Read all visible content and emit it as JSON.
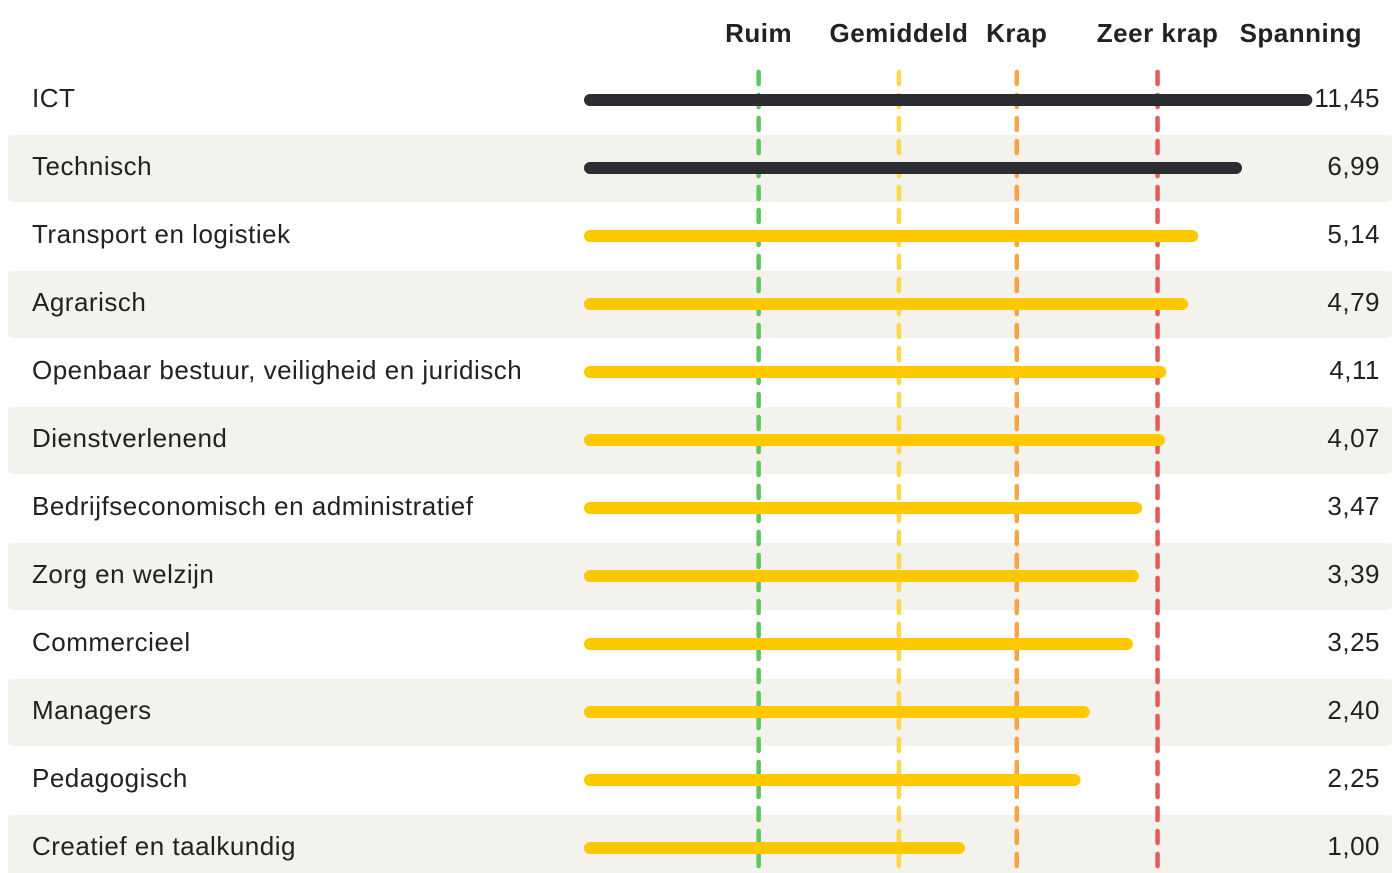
{
  "chart_data": {
    "type": "bar",
    "orientation": "horizontal",
    "log_scale": true,
    "xlim": [
      0.075,
      12
    ],
    "value_header": "Spanning",
    "categories": [
      "ICT",
      "Technisch",
      "Transport en logistiek",
      "Agrarisch",
      "Openbaar bestuur, veiligheid en juridisch",
      "Dienstverlenend",
      "Bedrijfseconomisch en administratief",
      "Zorg en welzijn",
      "Commercieel",
      "Managers",
      "Pedagogisch",
      "Creatief en taalkundig"
    ],
    "values": [
      11.45,
      6.99,
      5.14,
      4.79,
      4.11,
      4.07,
      3.47,
      3.39,
      3.25,
      2.4,
      2.25,
      1.0
    ],
    "value_labels": [
      "11,45",
      "6,99",
      "5,14",
      "4,79",
      "4,11",
      "4,07",
      "3,47",
      "3,39",
      "3,25",
      "2,40",
      "2,25",
      "1,00"
    ],
    "colors": [
      "#2b2d33",
      "#2b2d33",
      "#ffc800",
      "#ffc800",
      "#ffc800",
      "#ffc800",
      "#ffc800",
      "#ffc800",
      "#ffc800",
      "#ffc800",
      "#ffc800",
      "#ffc800"
    ],
    "reference_lines": [
      {
        "label": "Ruim",
        "value": 0.245,
        "color": "#5ec65e"
      },
      {
        "label": "Gemiddeld",
        "value": 0.656,
        "color": "#ffd84a"
      },
      {
        "label": "Krap",
        "value": 1.5,
        "color": "#f6a545"
      },
      {
        "label": "Zeer krap",
        "value": 4.03,
        "color": "#e65a5a"
      }
    ]
  }
}
